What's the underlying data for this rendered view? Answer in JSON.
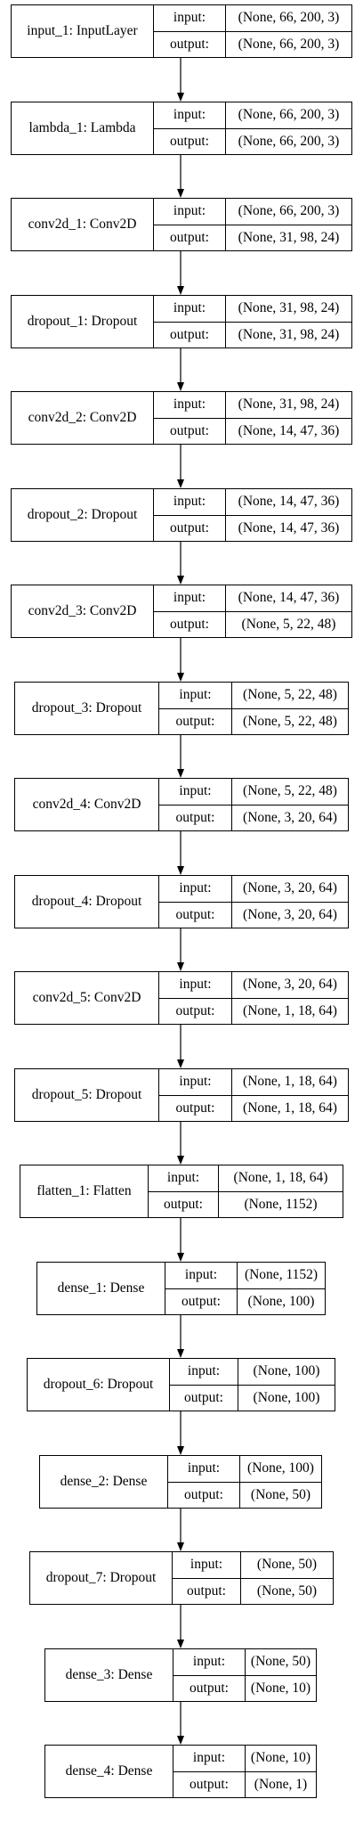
{
  "labels": {
    "input": "input:",
    "output": "output:"
  },
  "layers": [
    {
      "name": "input_1: InputLayer",
      "input": "(None, 66, 200, 3)",
      "output": "(None, 66, 200, 3)"
    },
    {
      "name": "lambda_1: Lambda",
      "input": "(None, 66, 200, 3)",
      "output": "(None, 66, 200, 3)"
    },
    {
      "name": "conv2d_1: Conv2D",
      "input": "(None, 66, 200, 3)",
      "output": "(None, 31, 98, 24)"
    },
    {
      "name": "dropout_1: Dropout",
      "input": "(None, 31, 98, 24)",
      "output": "(None, 31, 98, 24)"
    },
    {
      "name": "conv2d_2: Conv2D",
      "input": "(None, 31, 98, 24)",
      "output": "(None, 14, 47, 36)"
    },
    {
      "name": "dropout_2: Dropout",
      "input": "(None, 14, 47, 36)",
      "output": "(None, 14, 47, 36)"
    },
    {
      "name": "conv2d_3: Conv2D",
      "input": "(None, 14, 47, 36)",
      "output": "(None, 5, 22, 48)"
    },
    {
      "name": "dropout_3: Dropout",
      "input": "(None, 5, 22, 48)",
      "output": "(None, 5, 22, 48)"
    },
    {
      "name": "conv2d_4: Conv2D",
      "input": "(None, 5, 22, 48)",
      "output": "(None, 3, 20, 64)"
    },
    {
      "name": "dropout_4: Dropout",
      "input": "(None, 3, 20, 64)",
      "output": "(None, 3, 20, 64)"
    },
    {
      "name": "conv2d_5: Conv2D",
      "input": "(None, 3, 20, 64)",
      "output": "(None, 1, 18, 64)"
    },
    {
      "name": "dropout_5: Dropout",
      "input": "(None, 1, 18, 64)",
      "output": "(None, 1, 18, 64)"
    },
    {
      "name": "flatten_1: Flatten",
      "input": "(None, 1, 18, 64)",
      "output": "(None, 1152)"
    },
    {
      "name": "dense_1: Dense",
      "input": "(None, 1152)",
      "output": "(None, 100)"
    },
    {
      "name": "dropout_6: Dropout",
      "input": "(None, 100)",
      "output": "(None, 100)"
    },
    {
      "name": "dense_2: Dense",
      "input": "(None, 100)",
      "output": "(None, 50)"
    },
    {
      "name": "dropout_7: Dropout",
      "input": "(None, 50)",
      "output": "(None, 50)"
    },
    {
      "name": "dense_3: Dense",
      "input": "(None, 50)",
      "output": "(None, 10)"
    },
    {
      "name": "dense_4: Dense",
      "input": "(None, 10)",
      "output": "(None, 1)"
    }
  ]
}
